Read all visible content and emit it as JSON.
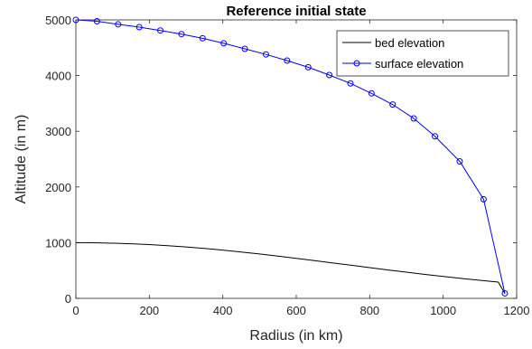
{
  "chart_data": {
    "type": "line",
    "title": "Reference initial state",
    "xlabel": "Radius (in km)",
    "ylabel": "Altitude (in m)",
    "xlim": [
      0,
      1200
    ],
    "ylim": [
      0,
      5000
    ],
    "xticks": [
      0,
      200,
      400,
      600,
      800,
      1000,
      1200
    ],
    "yticks": [
      0,
      1000,
      2000,
      3000,
      4000,
      5000
    ],
    "legend_position": "top-right",
    "series": [
      {
        "name": "bed elevation",
        "color": "#000000",
        "marker": "none",
        "x": [
          0,
          50,
          100,
          150,
          200,
          250,
          300,
          350,
          400,
          450,
          500,
          550,
          600,
          650,
          700,
          750,
          800,
          850,
          900,
          950,
          1000,
          1050,
          1100,
          1150,
          1168
        ],
        "y": [
          1000,
          998,
          991,
          980,
          965,
          946,
          923,
          896,
          866,
          833,
          797,
          759,
          719,
          678,
          636,
          594,
          552,
          510,
          470,
          430,
          393,
          357,
          324,
          293,
          85
        ]
      },
      {
        "name": "surface elevation",
        "color": "#0000ff",
        "marker": "circle",
        "x": [
          0,
          57.5,
          115,
          172.5,
          230,
          287.5,
          345,
          402.5,
          460,
          517.5,
          575,
          632.5,
          690,
          747.5,
          805,
          862.5,
          920,
          977.5,
          1045,
          1110,
          1168
        ],
        "y": [
          5000,
          4975,
          4920,
          4870,
          4810,
          4745,
          4670,
          4580,
          4480,
          4380,
          4270,
          4150,
          4010,
          3860,
          3680,
          3480,
          3230,
          2910,
          2460,
          1780,
          90
        ]
      }
    ]
  }
}
